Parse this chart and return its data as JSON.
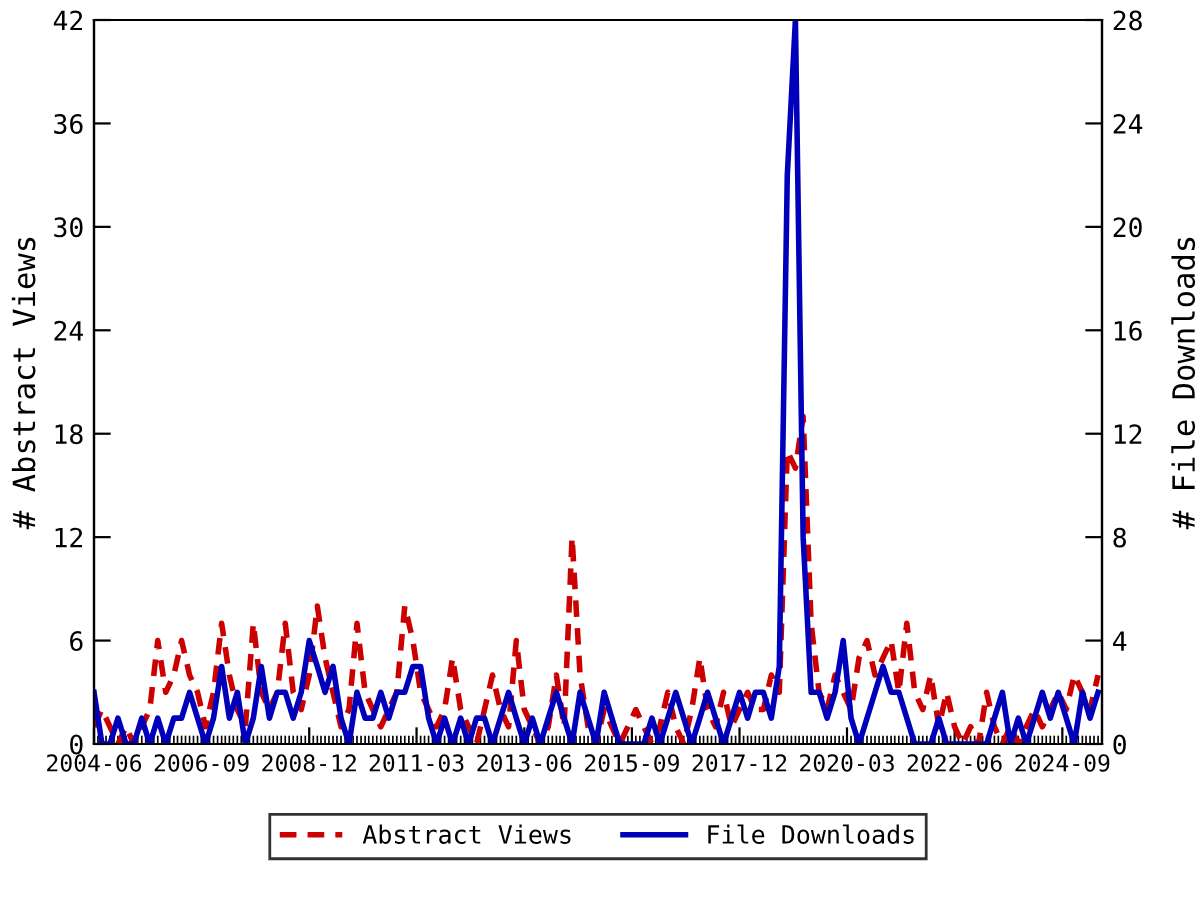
{
  "chart_data": {
    "type": "line",
    "xlabel": null,
    "ylabel": "# Abstract Views",
    "y2label": "# File Downloads",
    "x": [
      "2004-06",
      "2004-08",
      "2004-10",
      "2004-12",
      "2005-02",
      "2005-04",
      "2005-06",
      "2005-08",
      "2005-10",
      "2005-12",
      "2006-02",
      "2006-04",
      "2006-06",
      "2006-08",
      "2006-10",
      "2006-12",
      "2007-02",
      "2007-04",
      "2007-06",
      "2007-08",
      "2007-10",
      "2007-12",
      "2008-02",
      "2008-04",
      "2008-06",
      "2008-08",
      "2008-10",
      "2008-12",
      "2009-02",
      "2009-04",
      "2009-06",
      "2009-08",
      "2009-10",
      "2009-12",
      "2010-02",
      "2010-04",
      "2010-06",
      "2010-08",
      "2010-10",
      "2010-12",
      "2011-02",
      "2011-04",
      "2011-06",
      "2011-08",
      "2011-10",
      "2011-12",
      "2012-02",
      "2012-04",
      "2012-06",
      "2012-08",
      "2012-10",
      "2012-12",
      "2013-02",
      "2013-04",
      "2013-06",
      "2013-08",
      "2013-10",
      "2013-12",
      "2014-02",
      "2014-04",
      "2014-06",
      "2014-08",
      "2014-10",
      "2014-12",
      "2015-02",
      "2015-04",
      "2015-06",
      "2015-08",
      "2015-10",
      "2015-12",
      "2016-02",
      "2016-04",
      "2016-06",
      "2016-08",
      "2016-10",
      "2016-12",
      "2017-02",
      "2017-04",
      "2017-06",
      "2017-08",
      "2017-10",
      "2017-12",
      "2018-02",
      "2018-04",
      "2018-06",
      "2018-08",
      "2018-10",
      "2018-12",
      "2019-02",
      "2019-04",
      "2019-06",
      "2019-08",
      "2019-10",
      "2019-12",
      "2020-02",
      "2020-04",
      "2020-06",
      "2020-08",
      "2020-10",
      "2020-12",
      "2021-02",
      "2021-04",
      "2021-06",
      "2021-08",
      "2021-10",
      "2021-12",
      "2022-02",
      "2022-04",
      "2022-06",
      "2022-08",
      "2022-10",
      "2022-12",
      "2023-02",
      "2023-04",
      "2023-06",
      "2023-08",
      "2023-10",
      "2023-12",
      "2024-02",
      "2024-04",
      "2024-06",
      "2024-08",
      "2024-10",
      "2024-12",
      "2025-02",
      "2025-04",
      "2025-06"
    ],
    "series": [
      {
        "name": "Abstract Views",
        "color": "#cc0000",
        "line_style": "dashed",
        "values": [
          1,
          2,
          1,
          0,
          1,
          0,
          1,
          2,
          6,
          3,
          4,
          6,
          4,
          3,
          1,
          3,
          7,
          4,
          2,
          1,
          7,
          3,
          2,
          3,
          7,
          3,
          2,
          4,
          8,
          5,
          3,
          1,
          2,
          7,
          3,
          2,
          1,
          2,
          3,
          8,
          6,
          3,
          2,
          1,
          2,
          5,
          2,
          1,
          0,
          2,
          4,
          2,
          1,
          6,
          2,
          1,
          0,
          1,
          4,
          1,
          12,
          4,
          1,
          0,
          2,
          1,
          0,
          1,
          2,
          1,
          0,
          1,
          3,
          1,
          0,
          2,
          5,
          2,
          1,
          3,
          1,
          2,
          3,
          2,
          2,
          4,
          3,
          17,
          16,
          19,
          7,
          3,
          2,
          4,
          3,
          2,
          5,
          6,
          4,
          5,
          6,
          3,
          7,
          3,
          2,
          4,
          1,
          3,
          1,
          0,
          1,
          0,
          3,
          1,
          0,
          1,
          0,
          1,
          2,
          1,
          2,
          3,
          2,
          4,
          3,
          2,
          4
        ]
      },
      {
        "name": "File Downloads",
        "color": "#0000bb",
        "line_style": "solid",
        "axis": "y2",
        "values": [
          2,
          0,
          0,
          1,
          0,
          0,
          1,
          0,
          1,
          0,
          1,
          1,
          2,
          1,
          0,
          1,
          3,
          1,
          2,
          0,
          1,
          3,
          1,
          2,
          2,
          1,
          2,
          4,
          3,
          2,
          3,
          1,
          0,
          2,
          1,
          1,
          2,
          1,
          2,
          2,
          3,
          3,
          1,
          0,
          1,
          0,
          1,
          0,
          1,
          1,
          0,
          1,
          2,
          1,
          0,
          1,
          0,
          1,
          2,
          1,
          0,
          2,
          1,
          0,
          2,
          1,
          0,
          0,
          0,
          0,
          1,
          0,
          1,
          2,
          1,
          0,
          1,
          2,
          1,
          0,
          1,
          2,
          1,
          2,
          2,
          1,
          3,
          22,
          28,
          8,
          2,
          2,
          1,
          2,
          4,
          1,
          0,
          1,
          2,
          3,
          2,
          2,
          1,
          0,
          0,
          0,
          1,
          0,
          0,
          0,
          0,
          0,
          0,
          1,
          2,
          0,
          1,
          0,
          1,
          2,
          1,
          2,
          1,
          0,
          2,
          1,
          2
        ]
      }
    ],
    "xlim": [
      "2004-06",
      "2025-07"
    ],
    "xticks": [
      "2004-06",
      "2006-09",
      "2008-12",
      "2011-03",
      "2013-06",
      "2015-09",
      "2017-12",
      "2020-03",
      "2022-06",
      "2024-09"
    ],
    "ylim": [
      0,
      42
    ],
    "yticks": [
      0,
      6,
      12,
      18,
      24,
      30,
      36,
      42
    ],
    "y2lim": [
      0,
      28
    ],
    "y2ticks": [
      0,
      4,
      8,
      12,
      16,
      20,
      24,
      28
    ],
    "grid": false,
    "legend": "bottom",
    "marker": "none"
  }
}
